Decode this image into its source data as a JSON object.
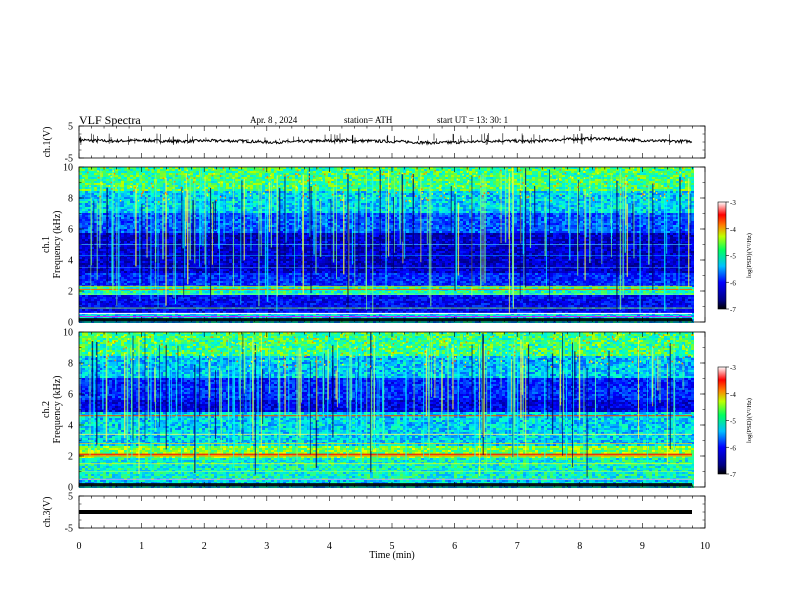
{
  "header": {
    "title": "VLF  Spectra",
    "date": "Apr. 8  , 2024",
    "station": "station= ATH",
    "start_ut": "start  UT  =    13: 30: 1"
  },
  "chart_data": [
    {
      "type": "line",
      "panel": "ch1-waveform",
      "ylabel": "ch.1(V)",
      "ylim": [
        -5,
        5
      ],
      "yticks": [
        "5",
        "-5"
      ],
      "xlim": [
        0,
        10
      ],
      "baseline_v": 0.4,
      "series": [
        {
          "values": [
            0.6,
            0.3,
            0.5,
            0.2,
            0.4,
            0.3,
            -0.1,
            0.2,
            0.5,
            0.3,
            0.1,
            -0.3,
            0.0,
            0.4,
            0.2,
            0.8,
            1.1,
            0.7,
            0.3,
            0.2
          ]
        }
      ]
    },
    {
      "type": "heatmap",
      "panel": "ch1-spectrogram",
      "ylabel": "ch.1\nFrequency (kHz)",
      "ylim": [
        0,
        10
      ],
      "yticks": [
        "0",
        "2",
        "4",
        "6",
        "8",
        "10"
      ],
      "xlim": [
        0,
        10
      ],
      "colorbar": {
        "label": "log(PSD)(V²/Hz)",
        "ticks": [
          "-3",
          "-4",
          "-5",
          "-6",
          "-7"
        ],
        "range": [
          -7,
          -3
        ]
      },
      "colors": [
        "#000080",
        "#0000ff",
        "#0080ff",
        "#00ffff",
        "#80ff80",
        "#ffff00",
        "#ff8000",
        "#ff0000",
        "#ffffff"
      ]
    },
    {
      "type": "heatmap",
      "panel": "ch2-spectrogram",
      "ylabel": "ch.2\nFrequency (kHz)",
      "ylim": [
        0,
        10
      ],
      "yticks": [
        "0",
        "2",
        "4",
        "6",
        "8",
        "10"
      ],
      "xlim": [
        0,
        10
      ],
      "colorbar": {
        "label": "log(PSD)(V²/Hz)",
        "ticks": [
          "-3",
          "-4",
          "-5",
          "-6",
          "-7"
        ],
        "range": [
          -7,
          -3
        ]
      }
    },
    {
      "type": "line",
      "panel": "ch3-waveform",
      "ylabel": "ch.3(V)",
      "ylim": [
        -5,
        5
      ],
      "yticks": [
        "5",
        "-5"
      ],
      "xlim": [
        0,
        10
      ],
      "baseline_v": 0.0,
      "series": [
        {
          "values": [
            0,
            0,
            0,
            0,
            0,
            0,
            0,
            0,
            0,
            0
          ]
        }
      ]
    }
  ],
  "xaxis": {
    "label": "Time  (min)",
    "ticks": [
      "0",
      "1",
      "2",
      "3",
      "4",
      "5",
      "6",
      "7",
      "8",
      "9",
      "10"
    ],
    "range": [
      0,
      10
    ]
  }
}
